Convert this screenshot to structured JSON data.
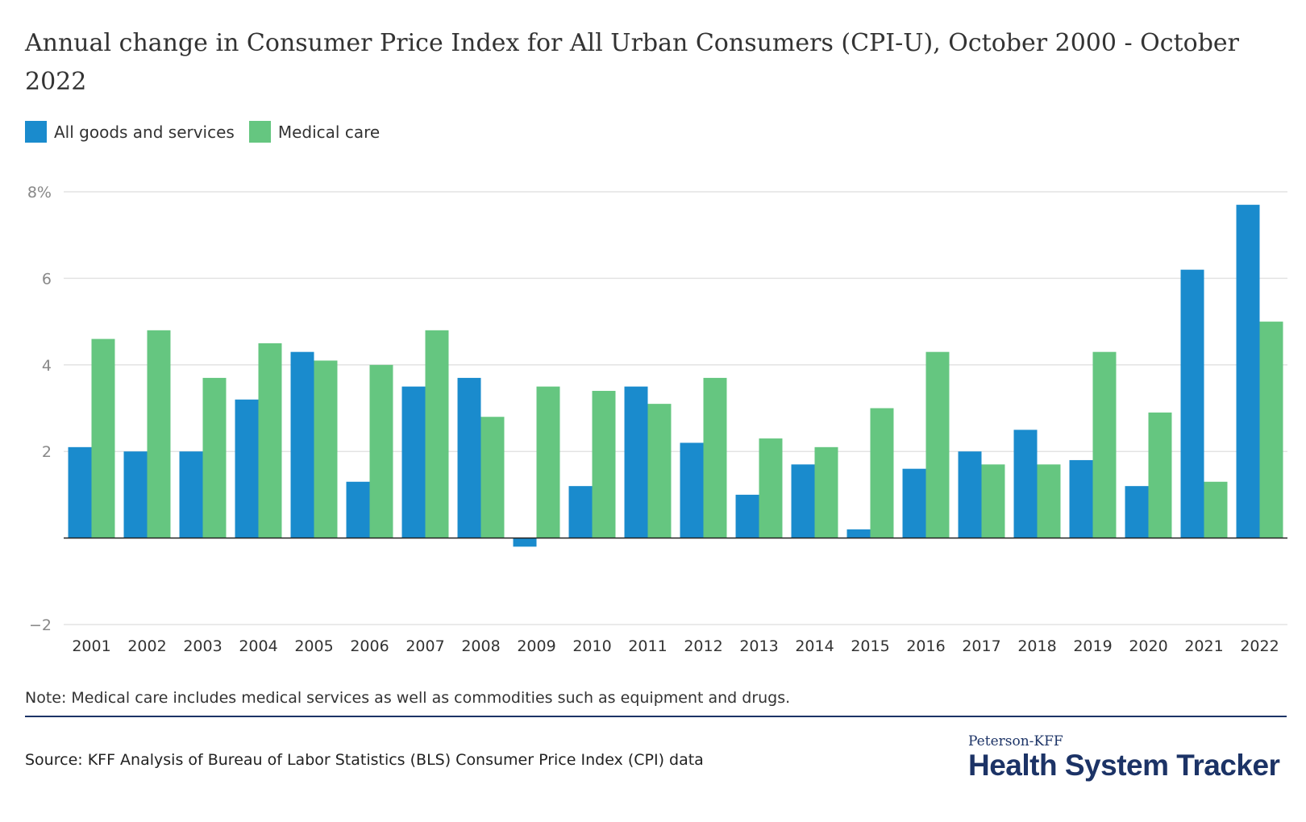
{
  "chart_data": {
    "type": "bar",
    "title": "Annual change in Consumer Price Index for All Urban Consumers (CPI-U), October 2000 - October 2022",
    "categories": [
      "2001",
      "2002",
      "2003",
      "2004",
      "2005",
      "2006",
      "2007",
      "2008",
      "2009",
      "2010",
      "2011",
      "2012",
      "2013",
      "2014",
      "2015",
      "2016",
      "2017",
      "2018",
      "2019",
      "2020",
      "2021",
      "2022"
    ],
    "series": [
      {
        "name": "All goods and services",
        "color": "#1a8bcd",
        "values": [
          2.1,
          2.0,
          2.0,
          3.2,
          4.3,
          1.3,
          3.5,
          3.7,
          -0.2,
          1.2,
          3.5,
          2.2,
          1.0,
          1.7,
          0.2,
          1.6,
          2.0,
          2.5,
          1.8,
          1.2,
          6.2,
          7.7
        ]
      },
      {
        "name": "Medical care",
        "color": "#65c680",
        "values": [
          4.6,
          4.8,
          3.7,
          4.5,
          4.1,
          4.0,
          4.8,
          2.8,
          3.5,
          3.4,
          3.1,
          3.7,
          2.3,
          2.1,
          3.0,
          4.3,
          1.7,
          1.7,
          4.3,
          2.9,
          1.3,
          5.0
        ]
      }
    ],
    "ylim": [
      -2,
      8
    ],
    "yticks": [
      -2,
      2,
      4,
      6,
      8
    ],
    "ytick_labels": [
      "−2",
      "2",
      "4",
      "6",
      "8%"
    ],
    "grid": true,
    "legend_position": "top-left",
    "xlabel": "",
    "ylabel": ""
  },
  "note": "Note: Medical care includes medical services as well as commodities such as equipment and drugs.",
  "source": "Source: KFF Analysis of Bureau of Labor Statistics (BLS) Consumer Price Index (CPI) data",
  "logo": {
    "line1": "Peterson-KFF",
    "line2": "Health System Tracker",
    "color": "#1c3366"
  }
}
